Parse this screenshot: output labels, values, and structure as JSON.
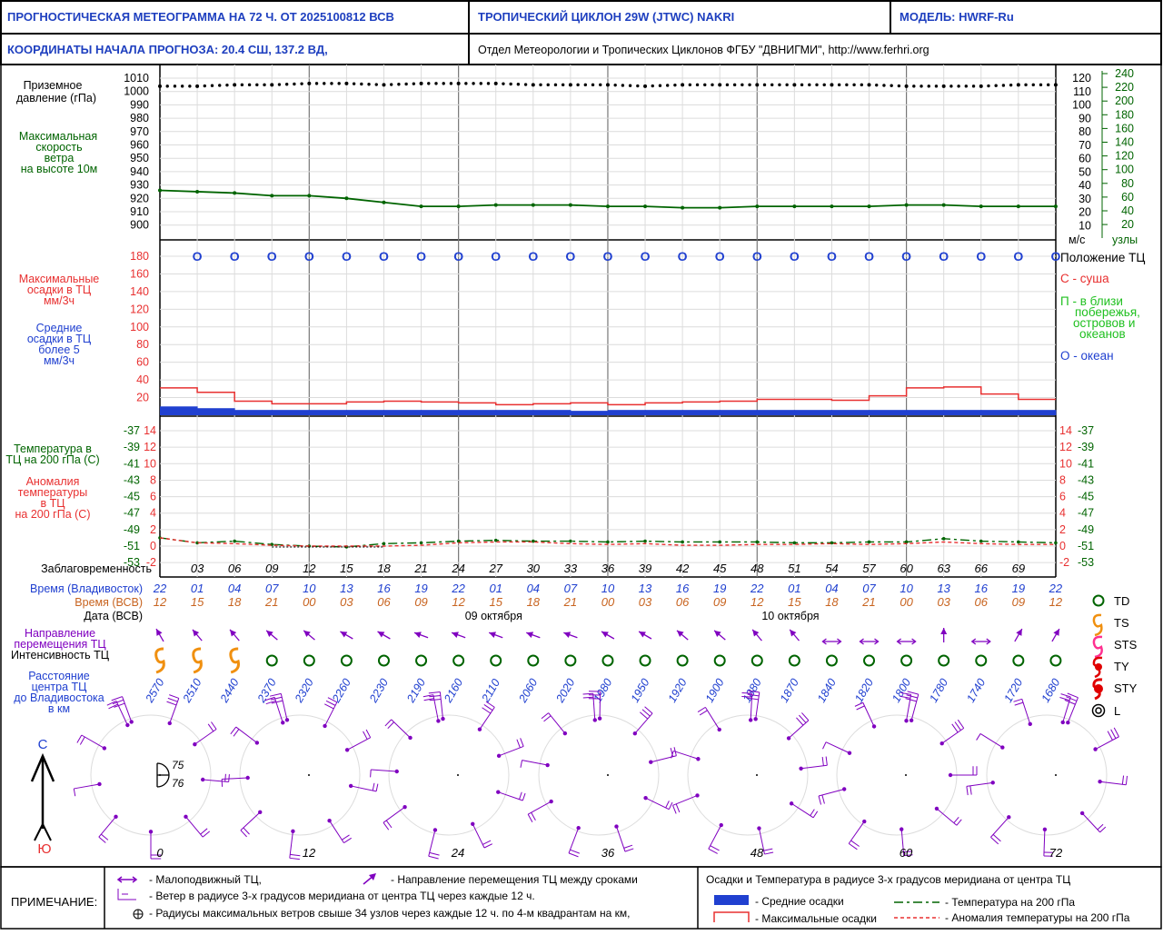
{
  "header": {
    "title": "ПРОГНОСТИЧЕСКАЯ МЕТЕОГРАММА НА 72 Ч. ОТ 2025100812 ВСВ",
    "cyclone": "ТРОПИЧЕСКИЙ ЦИКЛОН  29W  (JTWC)  NAKRI",
    "model": "МОДЕЛЬ:   HWRF-Ru",
    "coords": "КООРДИНАТЫ НАЧАЛА ПРОГНОЗА:  20.4  СШ,   137.2  ВД,",
    "org": "Отдел Метеорологии и Тропических Циклонов ФГБУ \"ДВНИГМИ\",  http://www.ferhri.org"
  },
  "labels": {
    "pressure": [
      "Приземное",
      "давление (гПа)"
    ],
    "wind": [
      "Максимальная",
      "скорость",
      "ветра",
      "на высоте 10м"
    ],
    "precip_max": [
      "Максимальные",
      "осадки в ТЦ",
      "мм/3ч"
    ],
    "precip_mean": [
      "Средние",
      "осадки в ТЦ",
      "более 5",
      "мм/3ч"
    ],
    "temp": [
      "Температура в",
      "ТЦ на 200 гПа (С)"
    ],
    "anom": [
      "Аномалия",
      "температуры",
      "в ТЦ",
      "на 200 гПа (С)"
    ],
    "lead": "Заблаговременность",
    "time_vlad": "Время (Владивосток)",
    "time_utc": "Время (ВСВ)",
    "date": "Дата (ВСВ)",
    "direction": [
      "Направление",
      "перемещения ТЦ"
    ],
    "intensity": "Интенсивность ТЦ",
    "distance": [
      "Расстояние",
      "центра ТЦ",
      "до Владивостока",
      "в км"
    ],
    "wind_units_ms": "м/с",
    "wind_units_kt": "узлы",
    "position_title": "Положение ТЦ",
    "pos_land": "С - суша",
    "pos_coast": [
      "П - в близи",
      "побережья,",
      "островов и",
      "океанов"
    ],
    "pos_ocean": "О - океан",
    "north": "С",
    "south": "Ю",
    "legend_td": "TD",
    "legend_ts": "TS",
    "legend_sts": "STS",
    "legend_ty": "TY",
    "legend_sty": "STY",
    "legend_l": "L"
  },
  "chart_data": {
    "type": "line",
    "lead_hours": [
      0,
      3,
      6,
      9,
      12,
      15,
      18,
      21,
      24,
      27,
      30,
      33,
      36,
      39,
      42,
      45,
      48,
      51,
      54,
      57,
      60,
      63,
      66,
      69,
      72
    ],
    "lead_tick_labels": [
      "03",
      "06",
      "09",
      "12",
      "15",
      "18",
      "21",
      "24",
      "27",
      "30",
      "33",
      "36",
      "39",
      "42",
      "45",
      "48",
      "51",
      "54",
      "57",
      "60",
      "63",
      "66",
      "69"
    ],
    "time_vladivostok": [
      "22",
      "01",
      "04",
      "07",
      "10",
      "13",
      "16",
      "19",
      "22",
      "01",
      "04",
      "07",
      "10",
      "13",
      "16",
      "19",
      "22",
      "01",
      "04",
      "07",
      "10",
      "13",
      "16",
      "19",
      "22"
    ],
    "time_utc": [
      "12",
      "15",
      "18",
      "21",
      "00",
      "03",
      "06",
      "09",
      "12",
      "15",
      "18",
      "21",
      "00",
      "03",
      "06",
      "09",
      "12",
      "15",
      "18",
      "21",
      "00",
      "03",
      "06",
      "09",
      "12"
    ],
    "dates": [
      "09 октября",
      "10 октября"
    ],
    "pressure_axis": {
      "ticks": [
        "1010",
        "1000",
        "990",
        "980",
        "970",
        "960",
        "950",
        "940",
        "930",
        "920",
        "910",
        "900"
      ],
      "ylim": [
        900,
        1010
      ]
    },
    "pressure_hpa": [
      1004,
      1004,
      1005,
      1005,
      1006,
      1006,
      1005,
      1006,
      1006,
      1006,
      1005,
      1005,
      1005,
      1004,
      1005,
      1005,
      1005,
      1005,
      1005,
      1005,
      1004,
      1004,
      1004,
      1005,
      1005
    ],
    "wind_ms_axis": [
      "120",
      "110",
      "100",
      "90",
      "80",
      "70",
      "60",
      "50",
      "40",
      "30",
      "20",
      "10"
    ],
    "wind_kt_axis": [
      "240",
      "220",
      "200",
      "180",
      "160",
      "140",
      "120",
      "100",
      "80",
      "60",
      "40",
      "20"
    ],
    "wind_scale_hpa": [
      926,
      925,
      924,
      922,
      922,
      920,
      917,
      914,
      914,
      915,
      915,
      915,
      914,
      914,
      913,
      913,
      914,
      914,
      914,
      914,
      915,
      915,
      914,
      914,
      914
    ],
    "precip_axis": {
      "ticks": [
        "180",
        "160",
        "140",
        "120",
        "100",
        "80",
        "60",
        "40",
        "20"
      ],
      "ylim": [
        0,
        190
      ]
    },
    "precip_max": [
      31,
      26,
      16,
      13,
      13,
      15,
      16,
      15,
      14,
      12,
      13,
      14,
      12,
      14,
      15,
      16,
      18,
      18,
      17,
      22,
      31,
      32,
      24,
      18
    ],
    "precip_mean": [
      10,
      8,
      6,
      6,
      6,
      6,
      6,
      6,
      6,
      6,
      6,
      5,
      6,
      6,
      6,
      6,
      6,
      6,
      6,
      6,
      6,
      6,
      6,
      6
    ],
    "position": [
      "О",
      "О",
      "О",
      "О",
      "О",
      "О",
      "О",
      "О",
      "О",
      "О",
      "О",
      "О",
      "О",
      "О",
      "О",
      "О",
      "О",
      "О",
      "О",
      "О",
      "О",
      "О",
      "О",
      "О"
    ],
    "temp_axis": [
      "-37",
      "-39",
      "-41",
      "-43",
      "-45",
      "-47",
      "-49",
      "-51",
      "-53"
    ],
    "anom_axis": [
      "14",
      "12",
      "10",
      "8",
      "6",
      "4",
      "2",
      "0",
      "-2"
    ],
    "anomaly_c": [
      1.0,
      0.4,
      0.3,
      0.1,
      0.0,
      0.0,
      0.0,
      0.1,
      0.4,
      0.5,
      0.5,
      0.3,
      0.2,
      0.3,
      0.1,
      0.1,
      0.2,
      0.2,
      0.3,
      0.2,
      0.3,
      0.5,
      0.3,
      0.2,
      0.2
    ],
    "temp200_scale_c": [
      1.0,
      0.4,
      0.6,
      0.2,
      0.0,
      -0.1,
      0.3,
      0.4,
      0.6,
      0.7,
      0.6,
      0.6,
      0.5,
      0.6,
      0.5,
      0.5,
      0.5,
      0.4,
      0.4,
      0.5,
      0.5,
      0.9,
      0.6,
      0.5,
      0.4
    ],
    "intensity": [
      "TS",
      "TS",
      "TS",
      "TD",
      "TD",
      "TD",
      "TD",
      "TD",
      "TD",
      "TD",
      "TD",
      "TD",
      "TD",
      "TD",
      "TD",
      "TD",
      "TD",
      "TD",
      "TD",
      "TD",
      "TD",
      "TD",
      "TD",
      "TD",
      "TD"
    ],
    "direction_deg": [
      330,
      320,
      320,
      310,
      310,
      300,
      300,
      290,
      290,
      290,
      290,
      290,
      300,
      300,
      310,
      310,
      320,
      320,
      "stationary",
      "stationary",
      "stationary",
      0,
      "stationary",
      30,
      30
    ],
    "distance_km": [
      "2570",
      "2510",
      "2440",
      "2370",
      "2320",
      "2260",
      "2230",
      "2190",
      "2160",
      "2110",
      "2060",
      "2020",
      "1980",
      "1950",
      "1920",
      "1900",
      "1880",
      "1870",
      "1840",
      "1820",
      "1800",
      "1780",
      "1740",
      "1720",
      "1680"
    ],
    "radius_hours": [
      "0",
      "12",
      "24",
      "36",
      "48",
      "60",
      "72"
    ],
    "radius_quadrants_kt": [
      "75",
      "76"
    ]
  },
  "notes": {
    "title": "ПРИМЕЧАНИЕ:",
    "stationary": "- Малоподвижный ТЦ,",
    "direction": "- Направление перемещения ТЦ между сроками",
    "wind_radius": "- Ветер в радиусе 3-х градусов меридиана от центра ТЦ через каждые 12 ч.",
    "radii": "- Радиусы максимальных ветров свыше 34 узлов через каждые 12 ч. по 4-м квадрантам на км,",
    "right_title": "Осадки и Температура в радиусе 3-х градусов меридиана от центра ТЦ",
    "mean_precip": "- Средние осадки",
    "max_precip": "- Максимальные осадки",
    "temp_line": "- Температура на 200 гПа",
    "anom_line": "- Аномалия температуры на 200 гПа"
  },
  "colors": {
    "blue_title": "#1e3fbf",
    "green": "#006400",
    "red": "#e83030",
    "blue": "#2040d0",
    "purple": "#8000c0",
    "orange": "#c86420",
    "ts_orange": "#f09010",
    "light_green": "#20c020"
  }
}
